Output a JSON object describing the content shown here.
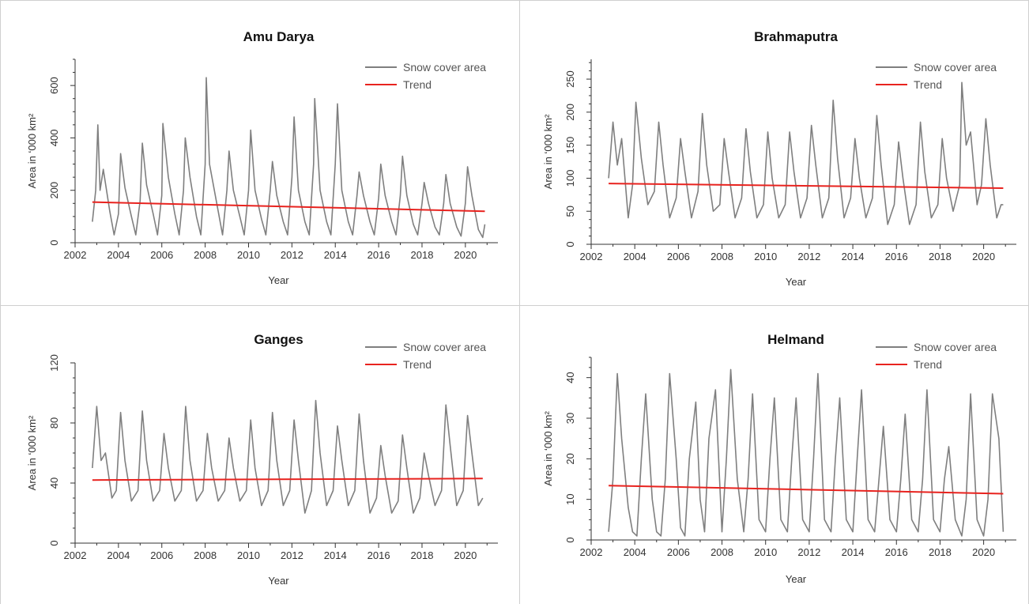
{
  "colors": {
    "series": "#7f7f7f",
    "trend": "#e8231f",
    "frame": "#cfcfcf",
    "axis": "#333333"
  },
  "legend": {
    "series_label": "Snow cover area",
    "trend_label": "Trend"
  },
  "chart_data": [
    {
      "type": "line",
      "title": "Amu Darya",
      "xlabel": "Year",
      "ylabel": "Area in ‘000 km²",
      "xlim": [
        2002,
        2021.5
      ],
      "ylim": [
        0,
        700
      ],
      "x_ticks": [
        2002,
        2004,
        2006,
        2008,
        2010,
        2012,
        2014,
        2016,
        2018,
        2020
      ],
      "y_ticks": [
        0,
        200,
        400,
        600
      ],
      "legend_position": "top-right",
      "series": [
        {
          "name": "Snow cover area",
          "x": [
            2002.8,
            2002.95,
            2003.05,
            2003.15,
            2003.3,
            2003.6,
            2003.8,
            2004.0,
            2004.1,
            2004.3,
            2004.6,
            2004.8,
            2005.0,
            2005.1,
            2005.3,
            2005.6,
            2005.8,
            2006.0,
            2006.05,
            2006.3,
            2006.6,
            2006.8,
            2007.0,
            2007.08,
            2007.3,
            2007.6,
            2007.8,
            2008.0,
            2008.05,
            2008.2,
            2008.6,
            2008.8,
            2009.0,
            2009.1,
            2009.3,
            2009.6,
            2009.8,
            2010.0,
            2010.1,
            2010.3,
            2010.6,
            2010.8,
            2011.0,
            2011.1,
            2011.3,
            2011.6,
            2011.8,
            2012.0,
            2012.1,
            2012.3,
            2012.6,
            2012.8,
            2013.0,
            2013.05,
            2013.3,
            2013.6,
            2013.8,
            2014.0,
            2014.1,
            2014.3,
            2014.6,
            2014.8,
            2015.0,
            2015.1,
            2015.3,
            2015.6,
            2015.8,
            2016.0,
            2016.1,
            2016.3,
            2016.6,
            2016.8,
            2017.0,
            2017.1,
            2017.3,
            2017.6,
            2017.8,
            2018.0,
            2018.1,
            2018.3,
            2018.6,
            2018.8,
            2019.0,
            2019.1,
            2019.3,
            2019.6,
            2019.8,
            2020.0,
            2020.1,
            2020.3,
            2020.6,
            2020.8,
            2020.9
          ],
          "y": [
            80,
            200,
            450,
            200,
            280,
            120,
            30,
            110,
            340,
            210,
            100,
            30,
            160,
            380,
            220,
            110,
            30,
            180,
            455,
            250,
            110,
            30,
            200,
            400,
            250,
            100,
            30,
            300,
            630,
            300,
            120,
            30,
            200,
            350,
            200,
            100,
            30,
            200,
            430,
            200,
            90,
            30,
            200,
            310,
            180,
            80,
            30,
            250,
            480,
            200,
            80,
            30,
            300,
            550,
            200,
            80,
            30,
            300,
            530,
            200,
            80,
            30,
            180,
            270,
            180,
            80,
            30,
            170,
            300,
            180,
            80,
            30,
            180,
            330,
            180,
            70,
            30,
            150,
            230,
            150,
            60,
            30,
            150,
            260,
            150,
            60,
            25,
            150,
            290,
            180,
            50,
            20,
            70
          ]
        },
        {
          "name": "Trend",
          "x": [
            2002.8,
            2020.9
          ],
          "y": [
            155,
            120
          ]
        }
      ]
    },
    {
      "type": "line",
      "title": "Brahmaputra",
      "xlabel": "Year",
      "ylabel": "Area in ‘000 km²",
      "xlim": [
        2002,
        2021.5
      ],
      "ylim": [
        0,
        280
      ],
      "x_ticks": [
        2002,
        2004,
        2006,
        2008,
        2010,
        2012,
        2014,
        2016,
        2018,
        2020
      ],
      "y_ticks": [
        0,
        50,
        100,
        150,
        200,
        250
      ],
      "legend_position": "top-right",
      "series": [
        {
          "name": "Snow cover area",
          "x": [
            2002.8,
            2003.0,
            2003.2,
            2003.4,
            2003.7,
            2003.9,
            2004.05,
            2004.3,
            2004.6,
            2004.9,
            2005.1,
            2005.3,
            2005.6,
            2005.9,
            2006.1,
            2006.3,
            2006.6,
            2006.9,
            2007.1,
            2007.3,
            2007.6,
            2007.9,
            2008.1,
            2008.3,
            2008.6,
            2008.9,
            2009.1,
            2009.3,
            2009.6,
            2009.9,
            2010.1,
            2010.3,
            2010.6,
            2010.9,
            2011.1,
            2011.3,
            2011.6,
            2011.9,
            2012.1,
            2012.3,
            2012.6,
            2012.9,
            2013.1,
            2013.3,
            2013.6,
            2013.9,
            2014.1,
            2014.3,
            2014.6,
            2014.9,
            2015.1,
            2015.3,
            2015.6,
            2015.9,
            2016.1,
            2016.3,
            2016.6,
            2016.9,
            2017.1,
            2017.3,
            2017.6,
            2017.9,
            2018.1,
            2018.3,
            2018.6,
            2018.9,
            2019.0,
            2019.2,
            2019.4,
            2019.7,
            2019.9,
            2020.1,
            2020.3,
            2020.6,
            2020.8,
            2020.9
          ],
          "y": [
            100,
            185,
            120,
            160,
            40,
            90,
            215,
            130,
            60,
            80,
            185,
            120,
            40,
            70,
            160,
            110,
            40,
            80,
            198,
            120,
            50,
            60,
            160,
            110,
            40,
            70,
            175,
            110,
            40,
            60,
            170,
            100,
            40,
            60,
            170,
            110,
            40,
            70,
            180,
            120,
            40,
            70,
            218,
            130,
            40,
            70,
            160,
            100,
            40,
            70,
            195,
            120,
            30,
            60,
            155,
            100,
            30,
            60,
            185,
            110,
            40,
            60,
            160,
            100,
            50,
            90,
            245,
            150,
            170,
            60,
            90,
            190,
            120,
            40,
            60,
            60
          ]
        },
        {
          "name": "Trend",
          "x": [
            2002.8,
            2020.9
          ],
          "y": [
            92,
            85
          ]
        }
      ]
    },
    {
      "type": "line",
      "title": "Ganges",
      "xlabel": "Year",
      "ylabel": "Area in ‘000 km²",
      "xlim": [
        2002,
        2021.5
      ],
      "ylim": [
        0,
        120
      ],
      "x_ticks": [
        2002,
        2004,
        2006,
        2008,
        2010,
        2012,
        2014,
        2016,
        2018,
        2020
      ],
      "y_ticks": [
        0,
        40,
        80,
        120
      ],
      "legend_position": "top-right",
      "series": [
        {
          "name": "Snow cover area",
          "x": [
            2002.8,
            2003.0,
            2003.2,
            2003.4,
            2003.7,
            2003.9,
            2004.1,
            2004.3,
            2004.6,
            2004.9,
            2005.1,
            2005.3,
            2005.6,
            2005.9,
            2006.1,
            2006.3,
            2006.6,
            2006.9,
            2007.1,
            2007.3,
            2007.6,
            2007.9,
            2008.1,
            2008.3,
            2008.6,
            2008.9,
            2009.1,
            2009.3,
            2009.6,
            2009.9,
            2010.1,
            2010.3,
            2010.6,
            2010.9,
            2011.1,
            2011.3,
            2011.6,
            2011.9,
            2012.1,
            2012.3,
            2012.6,
            2012.9,
            2013.1,
            2013.3,
            2013.6,
            2013.9,
            2014.1,
            2014.3,
            2014.6,
            2014.9,
            2015.1,
            2015.3,
            2015.6,
            2015.9,
            2016.1,
            2016.3,
            2016.6,
            2016.9,
            2017.1,
            2017.3,
            2017.6,
            2017.9,
            2018.1,
            2018.3,
            2018.6,
            2018.9,
            2019.1,
            2019.3,
            2019.6,
            2019.9,
            2020.1,
            2020.3,
            2020.6,
            2020.8
          ],
          "y": [
            50,
            91,
            55,
            60,
            30,
            35,
            87,
            55,
            28,
            35,
            88,
            55,
            28,
            35,
            73,
            50,
            28,
            35,
            91,
            55,
            28,
            35,
            73,
            50,
            28,
            35,
            70,
            50,
            28,
            35,
            82,
            50,
            25,
            35,
            87,
            55,
            25,
            35,
            82,
            55,
            20,
            35,
            95,
            60,
            25,
            35,
            78,
            55,
            25,
            35,
            86,
            55,
            20,
            30,
            65,
            45,
            20,
            28,
            72,
            50,
            20,
            30,
            60,
            45,
            25,
            35,
            92,
            65,
            25,
            35,
            85,
            60,
            25,
            30
          ]
        },
        {
          "name": "Trend",
          "x": [
            2002.8,
            2020.8
          ],
          "y": [
            42,
            43
          ]
        }
      ]
    },
    {
      "type": "line",
      "title": "Helmand",
      "xlabel": "Year",
      "ylabel": "Area in ‘000 km²",
      "xlim": [
        2002,
        2021.5
      ],
      "ylim": [
        0,
        45
      ],
      "x_ticks": [
        2002,
        2004,
        2006,
        2008,
        2010,
        2012,
        2014,
        2016,
        2018,
        2020
      ],
      "y_ticks": [
        0,
        10,
        20,
        30,
        40
      ],
      "legend_position": "top-right",
      "series": [
        {
          "name": "Snow cover area",
          "x": [
            2002.8,
            2003.0,
            2003.2,
            2003.4,
            2003.7,
            2003.9,
            2004.1,
            2004.3,
            2004.5,
            2004.8,
            2005.0,
            2005.2,
            2005.4,
            2005.6,
            2005.9,
            2006.1,
            2006.3,
            2006.5,
            2006.8,
            2007.0,
            2007.2,
            2007.4,
            2007.7,
            2008.0,
            2008.2,
            2008.4,
            2008.7,
            2009.0,
            2009.2,
            2009.4,
            2009.7,
            2010.0,
            2010.2,
            2010.4,
            2010.7,
            2011.0,
            2011.2,
            2011.4,
            2011.7,
            2012.0,
            2012.2,
            2012.4,
            2012.7,
            2013.0,
            2013.2,
            2013.4,
            2013.7,
            2014.0,
            2014.2,
            2014.4,
            2014.7,
            2015.0,
            2015.2,
            2015.4,
            2015.7,
            2016.0,
            2016.2,
            2016.4,
            2016.7,
            2017.0,
            2017.2,
            2017.4,
            2017.7,
            2018.0,
            2018.2,
            2018.4,
            2018.7,
            2019.0,
            2019.2,
            2019.4,
            2019.7,
            2020.0,
            2020.2,
            2020.4,
            2020.7,
            2020.9
          ],
          "y": [
            2,
            15,
            41,
            25,
            8,
            2,
            1,
            20,
            36,
            10,
            2,
            1,
            15,
            41,
            20,
            3,
            1,
            20,
            34,
            10,
            2,
            25,
            37,
            2,
            20,
            42,
            15,
            2,
            15,
            36,
            5,
            2,
            20,
            35,
            5,
            2,
            20,
            35,
            5,
            2,
            20,
            41,
            5,
            2,
            20,
            35,
            5,
            2,
            20,
            37,
            5,
            2,
            15,
            28,
            5,
            2,
            15,
            31,
            5,
            2,
            15,
            37,
            5,
            2,
            15,
            23,
            5,
            1,
            10,
            36,
            5,
            1,
            10,
            36,
            25,
            2
          ]
        },
        {
          "name": "Trend",
          "x": [
            2002.8,
            2020.9
          ],
          "y": [
            13.4,
            11.4
          ]
        }
      ]
    }
  ]
}
